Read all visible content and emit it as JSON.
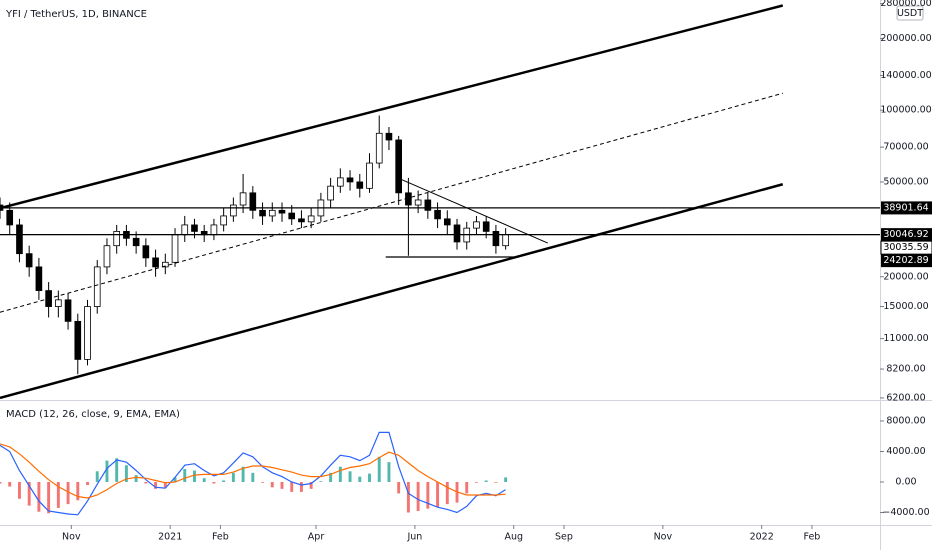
{
  "chart_data": [
    {
      "type": "candlestick",
      "title": "YFI / TetherUS, 1D, BINANCE",
      "currency": "USDT",
      "log_scale": true,
      "xlim": [
        -44,
        499
      ],
      "ylim": [
        6080,
        290000
      ],
      "yticks": [
        {
          "value": 6200,
          "label": "6200.00"
        },
        {
          "value": 8200,
          "label": "8200.00"
        },
        {
          "value": 11000,
          "label": "11000.00"
        },
        {
          "value": 15000,
          "label": "15000.00"
        },
        {
          "value": 20000,
          "label": "20000.00"
        },
        {
          "value": 50000,
          "label": "50000.00"
        },
        {
          "value": 70000,
          "label": "70000.00"
        },
        {
          "value": 100000,
          "label": "100000.00"
        },
        {
          "value": 140000,
          "label": "140000.00"
        },
        {
          "value": 200000,
          "label": "200000.00"
        },
        {
          "value": 280000,
          "label": "280000.00"
        }
      ],
      "x": [
        -44,
        -38,
        -32,
        -26,
        -20,
        -14,
        -8,
        -2,
        4,
        10,
        16,
        22,
        28,
        34,
        40,
        46,
        52,
        58,
        64,
        70,
        76,
        82,
        88,
        94,
        100,
        106,
        112,
        118,
        124,
        130,
        136,
        142,
        148,
        154,
        160,
        166,
        172,
        178,
        184,
        190,
        196,
        202,
        208,
        214,
        220,
        226,
        232,
        238,
        244,
        250,
        256,
        262,
        268
      ],
      "open": [
        40000,
        38000,
        33000,
        25000,
        22000,
        17500,
        15000,
        16000,
        13000,
        9000,
        15000,
        22000,
        27000,
        31000,
        29000,
        27000,
        24000,
        22000,
        23000,
        30000,
        33000,
        31000,
        30000,
        33000,
        36000,
        40000,
        45000,
        38000,
        36000,
        38000,
        37000,
        35000,
        34000,
        36000,
        42000,
        48000,
        52000,
        50000,
        47000,
        60000,
        80000,
        75000,
        45000,
        40000,
        42000,
        38000,
        35000,
        33000,
        28000,
        32000,
        34000,
        31000,
        27000
      ],
      "high": [
        43000,
        41000,
        35000,
        27000,
        24000,
        19000,
        17500,
        17000,
        14000,
        16000,
        23500,
        29000,
        33000,
        33000,
        31000,
        29000,
        26000,
        25000,
        32000,
        36000,
        35000,
        33000,
        35000,
        39000,
        43000,
        54000,
        48000,
        41000,
        41000,
        41000,
        40000,
        38000,
        39000,
        45000,
        52000,
        57000,
        56000,
        54000,
        66000,
        95000,
        85000,
        78000,
        52000,
        46000,
        45000,
        41000,
        38000,
        35000,
        34000,
        36000,
        36000,
        33000,
        32000
      ],
      "low": [
        35000,
        30000,
        23000,
        20000,
        16000,
        13500,
        13500,
        12000,
        7800,
        8500,
        14000,
        20500,
        25000,
        27000,
        25000,
        22000,
        20000,
        20500,
        22000,
        28000,
        29000,
        28000,
        28500,
        31000,
        34000,
        37000,
        35000,
        33000,
        34000,
        34000,
        33000,
        32000,
        32000,
        34000,
        39000,
        45000,
        46000,
        43000,
        45000,
        57000,
        68000,
        40000,
        24500,
        37000,
        35000,
        32000,
        30000,
        26000,
        26000,
        30000,
        29000,
        25000,
        26000
      ],
      "close": [
        38000,
        33000,
        25000,
        22000,
        17500,
        15000,
        16000,
        13000,
        9000,
        15000,
        22000,
        27000,
        31000,
        29000,
        27000,
        24000,
        22000,
        23000,
        30000,
        33000,
        31000,
        30000,
        33000,
        36000,
        40000,
        45000,
        38000,
        36000,
        38000,
        37000,
        35000,
        34000,
        36000,
        42000,
        48000,
        52000,
        50000,
        47000,
        60000,
        80000,
        75000,
        45000,
        40000,
        42000,
        38000,
        35000,
        33000,
        28000,
        32000,
        34000,
        31000,
        27000,
        30046.92
      ],
      "up_color": "#ffffff",
      "down_color": "#000000",
      "drawings": [
        {
          "points": [
            [
              -44,
              38800
            ],
            [
              439,
              275000
            ]
          ],
          "style": "solid",
          "width": 2.5
        },
        {
          "points": [
            [
              -44,
              6200
            ],
            [
              439,
              48900
            ]
          ],
          "style": "solid",
          "width": 2.5
        },
        {
          "points": [
            [
              -44,
              14200
            ],
            [
              439,
              117800
            ]
          ],
          "style": "dashed",
          "width": 1
        },
        {
          "points": [
            [
              202,
              51800
            ],
            [
              294,
              27700
            ]
          ],
          "style": "solid",
          "width": 1
        }
      ],
      "levels": [
        {
          "value": 38901.64,
          "style": "solid",
          "label_color": "#000000"
        },
        {
          "value": 30046.92,
          "style": "solid",
          "label_color": "#000000"
        },
        {
          "value": 30035.59,
          "style": "dotted",
          "label_color": "#ffffff"
        },
        {
          "value": 24202.89,
          "style": "solid",
          "label_color": "#000000",
          "x_range": [
            194,
            276
          ]
        }
      ]
    },
    {
      "type": "macd",
      "title": "MACD (12, 26, close, 9, EMA, EMA)",
      "xlim": [
        -44,
        499
      ],
      "ylim": [
        -5640,
        10750
      ],
      "xticks": [
        {
          "value": 0,
          "label": "Nov"
        },
        {
          "value": 61,
          "label": "2021"
        },
        {
          "value": 92,
          "label": "Feb"
        },
        {
          "value": 151,
          "label": "Apr"
        },
        {
          "value": 212,
          "label": "Jun"
        },
        {
          "value": 273,
          "label": "Aug"
        },
        {
          "value": 304,
          "label": "Sep"
        },
        {
          "value": 365,
          "label": "Nov"
        },
        {
          "value": 426,
          "label": "2022"
        },
        {
          "value": 457,
          "label": "Feb"
        }
      ],
      "yticks": [
        {
          "value": 8000,
          "label": "8000.00"
        },
        {
          "value": 4000,
          "label": "4000.00"
        },
        {
          "value": 0,
          "label": "0.00"
        },
        {
          "value": -4000,
          "label": "−4000.00"
        }
      ],
      "x": [
        -44,
        -38,
        -32,
        -26,
        -20,
        -14,
        -8,
        -2,
        4,
        10,
        16,
        22,
        28,
        34,
        40,
        46,
        52,
        58,
        64,
        70,
        76,
        82,
        88,
        94,
        100,
        106,
        112,
        118,
        124,
        130,
        136,
        142,
        148,
        154,
        160,
        166,
        172,
        178,
        184,
        190,
        196,
        202,
        208,
        214,
        220,
        226,
        232,
        238,
        244,
        250,
        256,
        262,
        268
      ],
      "series": [
        {
          "name": "MACD",
          "color": "#2962ff",
          "values": [
            4800,
            4000,
            1500,
            -500,
            -2500,
            -3800,
            -4000,
            -4200,
            -4300,
            -2500,
            -300,
            1800,
            2900,
            2600,
            1500,
            300,
            -700,
            -800,
            600,
            2200,
            2400,
            1500,
            800,
            1200,
            2500,
            3800,
            3300,
            2000,
            1200,
            700,
            0,
            -400,
            -200,
            800,
            2200,
            3500,
            3300,
            2800,
            3500,
            6500,
            6500,
            2000,
            -1500,
            -2300,
            -2800,
            -3300,
            -3600,
            -4000,
            -3200,
            -1800,
            -1500,
            -1800,
            -1000
          ]
        },
        {
          "name": "Signal",
          "color": "#ff6d00",
          "values": [
            5000,
            4600,
            3700,
            2600,
            1400,
            300,
            -600,
            -1300,
            -1900,
            -2100,
            -1700,
            -1000,
            -200,
            400,
            600,
            500,
            200,
            -100,
            0,
            500,
            900,
            1000,
            1000,
            1000,
            1300,
            1800,
            2100,
            2100,
            1900,
            1600,
            1300,
            900,
            700,
            700,
            1000,
            1500,
            1900,
            2100,
            2400,
            3200,
            3900,
            3500,
            2500,
            1500,
            700,
            0,
            -700,
            -1300,
            -1700,
            -1700,
            -1700,
            -1700,
            -1600
          ]
        }
      ],
      "histogram": {
        "name": "Histogram",
        "positive_color": "#26a69a",
        "negative_color": "#ef5350",
        "values": [
          -200,
          -600,
          -2200,
          -3100,
          -3900,
          -4100,
          -3400,
          -2900,
          -2400,
          -400,
          1400,
          2800,
          3100,
          2200,
          900,
          -200,
          -900,
          -700,
          600,
          1700,
          1500,
          500,
          -200,
          200,
          1200,
          2000,
          1200,
          -100,
          -700,
          -900,
          -1300,
          -1300,
          -900,
          100,
          1200,
          2000,
          1400,
          700,
          1100,
          3300,
          2600,
          -1500,
          -4000,
          -3800,
          -3500,
          -3300,
          -2900,
          -2700,
          -1500,
          -100,
          200,
          -100,
          600
        ]
      }
    }
  ]
}
